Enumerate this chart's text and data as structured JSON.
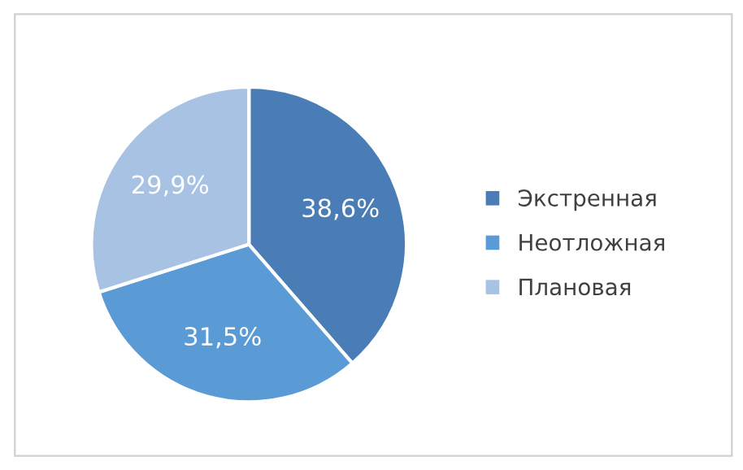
{
  "chart_data": {
    "type": "pie",
    "categories": [
      "Экстренная",
      "Неотложная",
      "Плановая"
    ],
    "values": [
      38.6,
      31.5,
      29.9
    ],
    "value_labels": [
      "38,6%",
      "31,5%",
      "29,9%"
    ],
    "colors": [
      "#4a7db5",
      "#5b9bd5",
      "#a8c2e4"
    ],
    "legend": "right"
  }
}
